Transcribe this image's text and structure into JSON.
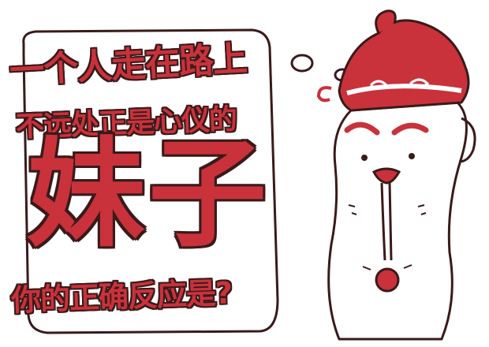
{
  "comic": {
    "line1": "一个人走在路上",
    "line2": "不远处正是心仪的",
    "big_word": "妹子",
    "line4": "你的正确反应是?"
  },
  "colors": {
    "accent": "#c9323b",
    "outline": "#3a1a1a",
    "background": "#ffffff",
    "face": "#ffffff"
  },
  "icons": [
    "thought-bubble-icon",
    "santa-hat-character-icon"
  ]
}
